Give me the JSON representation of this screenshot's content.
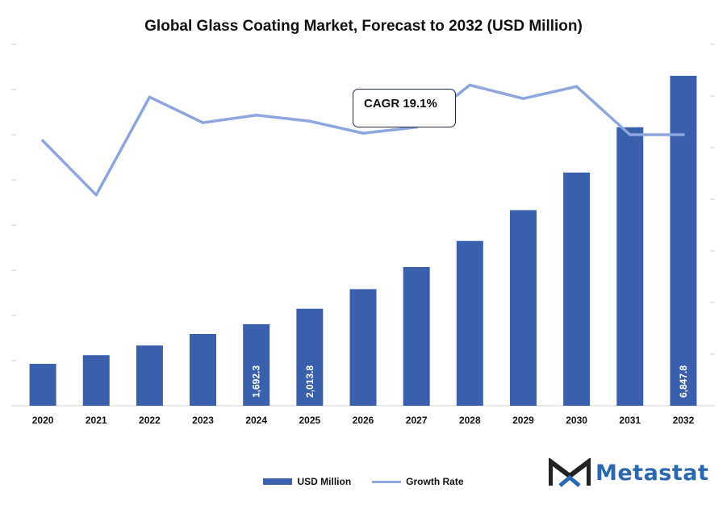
{
  "chart_data": {
    "type": "bar",
    "title": "Global Glass Coating Market, Forecast to 2032 (USD Million)",
    "categories": [
      "2020",
      "2021",
      "2022",
      "2023",
      "2024",
      "2025",
      "2026",
      "2027",
      "2028",
      "2029",
      "2030",
      "2031",
      "2032"
    ],
    "series": [
      {
        "name": "USD Million",
        "type": "bar",
        "color": "#3a5fad",
        "values": [
          870,
          1050,
          1250,
          1490,
          1692.3,
          2013.8,
          2420,
          2880,
          3420,
          4060,
          4840,
          5780,
          6847.8
        ]
      },
      {
        "name": "Growth Rate",
        "type": "line",
        "color": "#8ea6de",
        "values": [
          17.6,
          14.0,
          20.5,
          18.8,
          19.3,
          18.9,
          18.1,
          18.5,
          21.3,
          20.4,
          21.2,
          18.0,
          18.0
        ]
      }
    ],
    "data_labels": {
      "4": "1,692.3",
      "5": "2,013.8",
      "12": "6,847.8"
    },
    "ylim": [
      0,
      7500
    ],
    "y2lim": [
      0,
      24
    ],
    "annotation": "CAGR 19.1%",
    "legend_position": "bottom",
    "grid": false
  },
  "logo": {
    "text": "Metastat"
  }
}
